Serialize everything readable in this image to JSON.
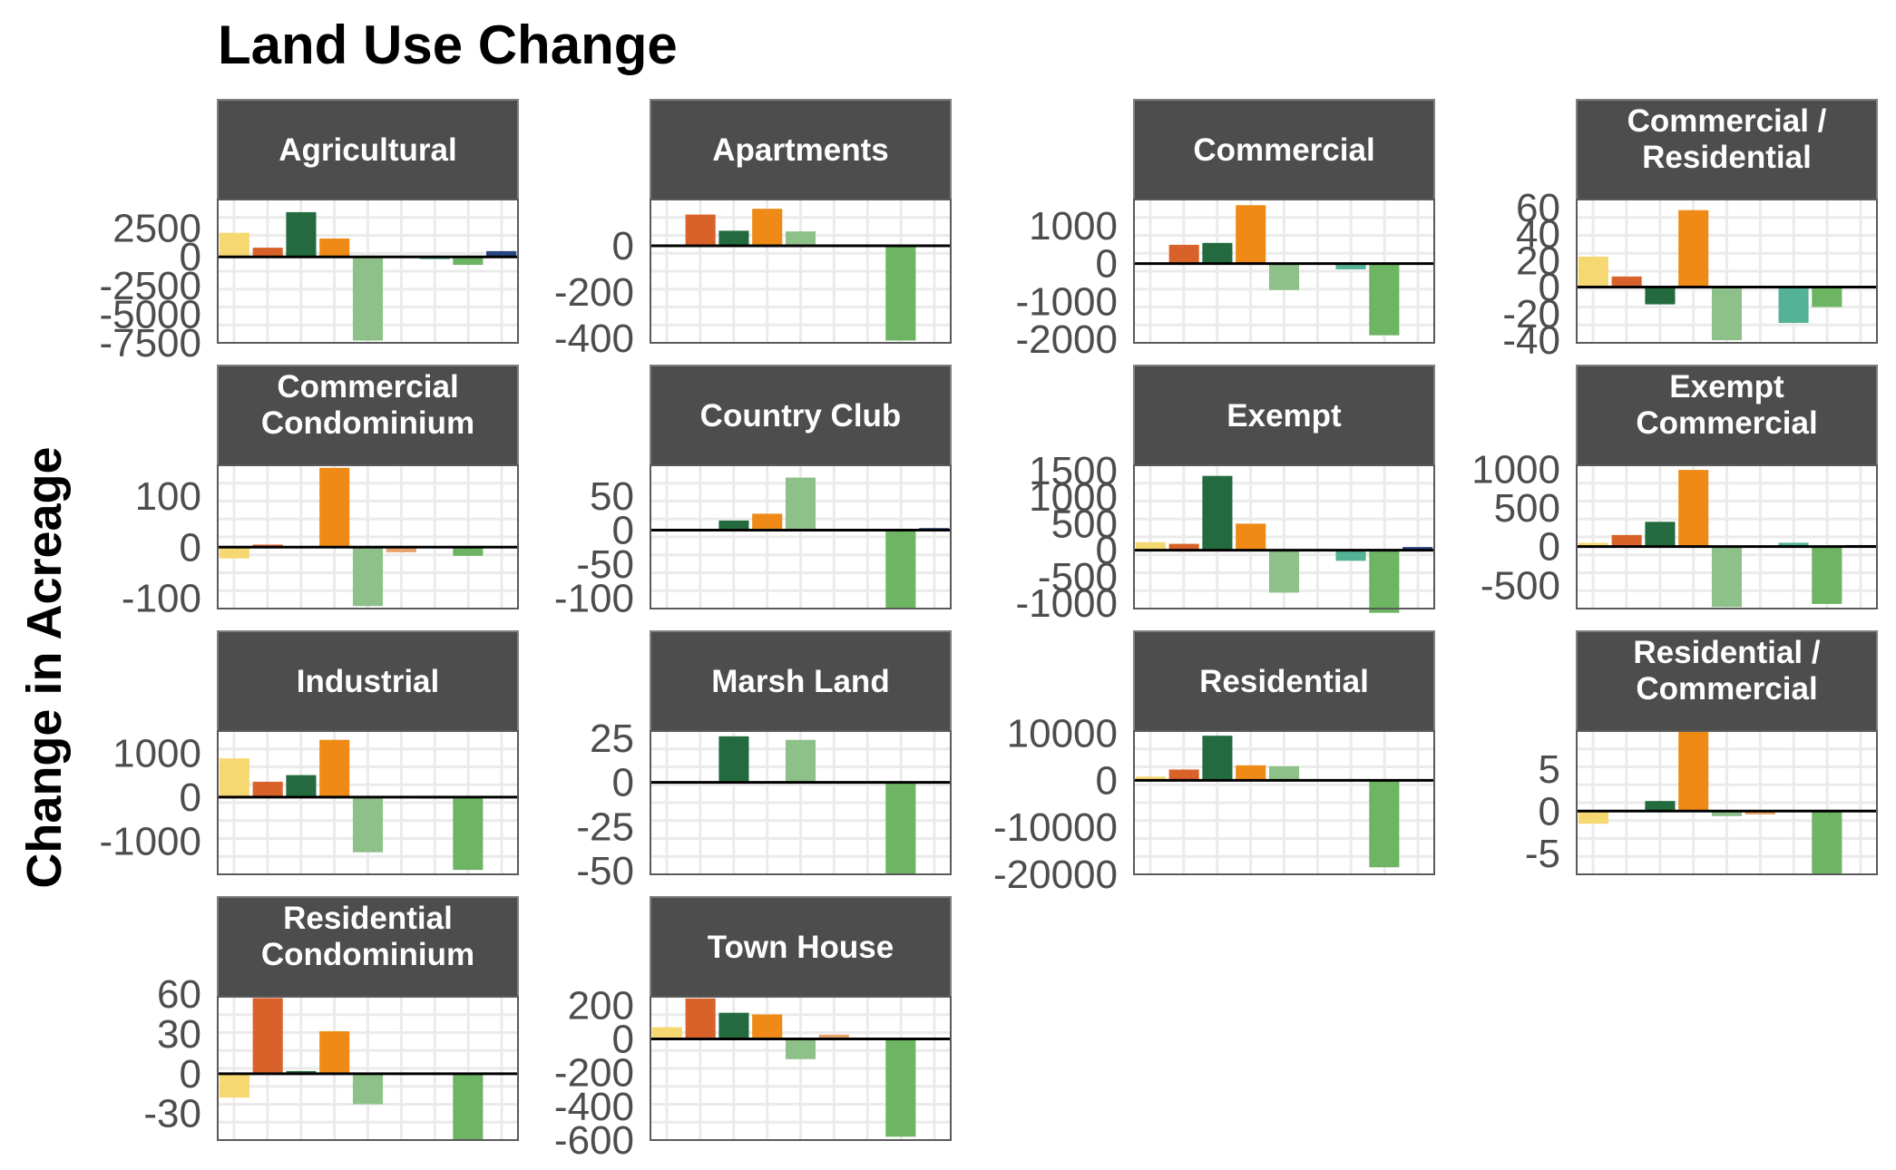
{
  "chart_data": {
    "type": "bar",
    "title": "Land Use Change",
    "xlabel": "",
    "ylabel": "Change in Acreage",
    "grid": true,
    "legend": "none",
    "colors": [
      "#f6d873",
      "#d9622b",
      "#236b3e",
      "#ee8a15",
      "#8ec18a",
      "#e8a36b",
      "#54b396",
      "#6db562",
      "#27457f"
    ],
    "panels": [
      {
        "name": "Agricultural",
        "title_lines": [
          "Agricultural"
        ],
        "ylim": [
          -7500,
          5000
        ],
        "ticks": [
          2500,
          0,
          -2500,
          -5000,
          -7500
        ],
        "tick_labels": [
          "2500",
          "0",
          "-2500",
          "-5000",
          "-7500"
        ],
        "values": [
          2100,
          800,
          3900,
          1600,
          -7300,
          0,
          -200,
          -700,
          500
        ]
      },
      {
        "name": "Apartments",
        "title_lines": [
          "Apartments"
        ],
        "ylim": [
          -420,
          200
        ],
        "ticks": [
          0,
          -200,
          -400
        ],
        "tick_labels": [
          "0",
          "-200",
          "-400"
        ],
        "values": [
          0,
          135,
          65,
          160,
          62,
          3,
          -5,
          -410,
          0
        ]
      },
      {
        "name": "Commercial",
        "title_lines": [
          "Commercial"
        ],
        "ylim": [
          -2100,
          1700
        ],
        "ticks": [
          1000,
          0,
          -1000,
          -2000
        ],
        "tick_labels": [
          "1000",
          "0",
          "-1000",
          "-2000"
        ],
        "values": [
          0,
          500,
          550,
          1550,
          -700,
          0,
          -150,
          -1900,
          0
        ]
      },
      {
        "name": "Commercial / Residential",
        "title_lines": [
          "Commercial /",
          "Residential"
        ],
        "ylim": [
          -42,
          66
        ],
        "ticks": [
          60,
          40,
          20,
          0,
          -20,
          -40
        ],
        "tick_labels": [
          "60",
          "40",
          "20",
          "0",
          "-20",
          "-40"
        ],
        "values": [
          23,
          8,
          -13,
          58,
          -40,
          0,
          -27,
          -15,
          1
        ]
      },
      {
        "name": "Commercial Condominium",
        "title_lines": [
          "Commercial",
          "Condominium"
        ],
        "ylim": [
          -120,
          160
        ],
        "ticks": [
          100,
          0,
          -100
        ],
        "tick_labels": [
          "100",
          "0",
          "-100"
        ],
        "values": [
          -22,
          5,
          0,
          155,
          -115,
          -10,
          0,
          -17,
          0
        ]
      },
      {
        "name": "Country Club",
        "title_lines": [
          "Country Club"
        ],
        "ylim": [
          -115,
          95
        ],
        "ticks": [
          50,
          0,
          -50,
          -100
        ],
        "tick_labels": [
          "50",
          "0",
          "-50",
          "-100"
        ],
        "values": [
          0,
          0,
          14,
          24,
          77,
          0,
          0,
          -115,
          3
        ]
      },
      {
        "name": "Exempt",
        "title_lines": [
          "Exempt"
        ],
        "ylim": [
          -1100,
          1600
        ],
        "ticks": [
          1500,
          1000,
          500,
          0,
          -500,
          -1000
        ],
        "tick_labels": [
          "1500",
          "1000",
          "500",
          "0",
          "-500",
          "-1000"
        ],
        "values": [
          150,
          120,
          1400,
          500,
          -800,
          0,
          -200,
          -1180,
          60
        ]
      },
      {
        "name": "Exempt Commercial",
        "title_lines": [
          "Exempt",
          "Commercial"
        ],
        "ylim": [
          -800,
          1050
        ],
        "ticks": [
          1000,
          500,
          0,
          -500
        ],
        "tick_labels": [
          "1000",
          "500",
          "0",
          "-500"
        ],
        "values": [
          50,
          150,
          320,
          990,
          -780,
          0,
          50,
          -740,
          20
        ]
      },
      {
        "name": "Industrial",
        "title_lines": [
          "Industrial"
        ],
        "ylim": [
          -1750,
          1500
        ],
        "ticks": [
          1000,
          0,
          -1000
        ],
        "tick_labels": [
          "1000",
          "0",
          "-1000"
        ],
        "values": [
          880,
          350,
          500,
          1300,
          -1250,
          0,
          -30,
          -1650,
          0
        ]
      },
      {
        "name": "Marsh Land",
        "title_lines": [
          "Marsh Land"
        ],
        "ylim": [
          -52,
          29
        ],
        "ticks": [
          25,
          0,
          -25,
          -50
        ],
        "tick_labels": [
          "25",
          "0",
          "-25",
          "-50"
        ],
        "values": [
          0,
          0,
          26,
          0,
          24,
          0,
          0,
          -52,
          0
        ]
      },
      {
        "name": "Residential",
        "title_lines": [
          "Residential"
        ],
        "ylim": [
          -20000,
          10500
        ],
        "ticks": [
          10000,
          0,
          -10000,
          -20000
        ],
        "tick_labels": [
          "10000",
          "0",
          "-10000",
          "-20000"
        ],
        "values": [
          800,
          2300,
          9500,
          3200,
          3000,
          0,
          0,
          -18500,
          0
        ]
      },
      {
        "name": "Residential / Commercial",
        "title_lines": [
          "Residential /",
          "Commercial"
        ],
        "ylim": [
          -7.5,
          9.5
        ],
        "ticks": [
          5,
          0,
          -5
        ],
        "tick_labels": [
          "5",
          "0",
          "-5"
        ],
        "values": [
          -1.5,
          0,
          1.2,
          9.5,
          -0.6,
          -0.4,
          0,
          -7.5,
          0
        ]
      },
      {
        "name": "Residential Condominium",
        "title_lines": [
          "Residential",
          "Condominium"
        ],
        "ylim": [
          -50,
          58
        ],
        "ticks": [
          60,
          30,
          0,
          -30
        ],
        "tick_labels": [
          "60",
          "30",
          "0",
          "-30"
        ],
        "values": [
          -18,
          57,
          2,
          32,
          -23,
          0,
          0,
          -50,
          0
        ]
      },
      {
        "name": "Town House",
        "title_lines": [
          "Town House"
        ],
        "ylim": [
          -600,
          250
        ],
        "ticks": [
          200,
          0,
          -200,
          -400,
          -600
        ],
        "tick_labels": [
          "200",
          "0",
          "-200",
          "-400",
          "-600"
        ],
        "values": [
          70,
          240,
          155,
          145,
          -120,
          25,
          0,
          -580,
          0
        ]
      }
    ]
  }
}
